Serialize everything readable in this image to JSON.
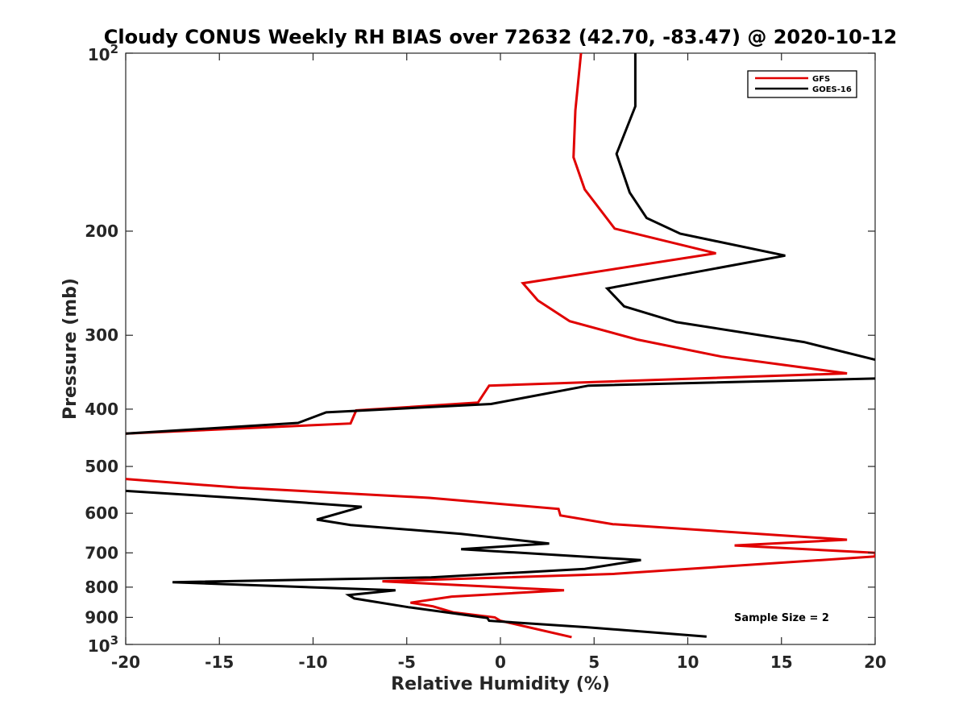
{
  "chart_data": {
    "type": "line",
    "title": "Cloudy CONUS Weekly RH BIAS over 72632 (42.70, -83.47) @ 2020-10-12",
    "xlabel": "Relative Humidity (%)",
    "ylabel": "Pressure (mb)",
    "xlim": [
      -20,
      20
    ],
    "ylim": [
      100,
      1000
    ],
    "yscale": "log",
    "y_reversed": true,
    "grid": false,
    "legend_position": "top-right",
    "annotation": "Sample Size = 2",
    "x_ticks": [
      {
        "value": -20,
        "label": "-20"
      },
      {
        "value": -15,
        "label": "-15"
      },
      {
        "value": -10,
        "label": "-10"
      },
      {
        "value": -5,
        "label": "-5"
      },
      {
        "value": 0,
        "label": "0"
      },
      {
        "value": 5,
        "label": "5"
      },
      {
        "value": 10,
        "label": "10"
      },
      {
        "value": 15,
        "label": "15"
      },
      {
        "value": 20,
        "label": "20"
      }
    ],
    "y_ticks": [
      {
        "value": 100,
        "base": "10",
        "exp": "2"
      },
      {
        "value": 200,
        "label": "200"
      },
      {
        "value": 300,
        "label": "300"
      },
      {
        "value": 400,
        "label": "400"
      },
      {
        "value": 500,
        "label": "500"
      },
      {
        "value": 600,
        "label": "600"
      },
      {
        "value": 700,
        "label": "700"
      },
      {
        "value": 800,
        "label": "800"
      },
      {
        "value": 900,
        "label": "900"
      },
      {
        "value": 1000,
        "base": "10",
        "exp": "3"
      }
    ],
    "series": [
      {
        "name": "GFS",
        "color": "#e00000",
        "points": [
          [
            4.3,
            100
          ],
          [
            4.0,
            125
          ],
          [
            3.9,
            150
          ],
          [
            4.5,
            170
          ],
          [
            6.1,
            198
          ],
          [
            11.5,
            218
          ],
          [
            1.2,
            245
          ],
          [
            2.0,
            262
          ],
          [
            3.7,
            284
          ],
          [
            7.3,
            305
          ],
          [
            11.8,
            326
          ],
          [
            18.5,
            348
          ],
          [
            -0.6,
            365
          ],
          [
            -1.2,
            390
          ],
          [
            -7.7,
            402
          ],
          [
            -8.0,
            423
          ],
          [
            -20,
            440
          ],
          [
            null,
            470
          ],
          [
            -20,
            525
          ],
          [
            -14.0,
            543
          ],
          [
            -3.8,
            565
          ],
          [
            3.1,
            590
          ],
          [
            3.2,
            605
          ],
          [
            6.0,
            626
          ],
          [
            18.5,
            665
          ],
          [
            12.5,
            680
          ],
          [
            20,
            700
          ],
          [
            20,
            710
          ],
          [
            6.0,
            760
          ],
          [
            -6.3,
            782
          ],
          [
            3.4,
            810
          ],
          [
            -2.6,
            830
          ],
          [
            -4.8,
            850
          ],
          [
            -3.6,
            862
          ],
          [
            -2.5,
            883
          ],
          [
            -0.3,
            900
          ],
          [
            0.0,
            912
          ],
          [
            3.8,
            972
          ]
        ]
      },
      {
        "name": "GOES-16",
        "color": "#000000",
        "points": [
          [
            7.2,
            100
          ],
          [
            7.2,
            123
          ],
          [
            6.2,
            148
          ],
          [
            6.9,
            172
          ],
          [
            7.8,
            190
          ],
          [
            9.6,
            202
          ],
          [
            15.2,
            220
          ],
          [
            5.7,
            250
          ],
          [
            6.6,
            268
          ],
          [
            9.4,
            285
          ],
          [
            16.2,
            308
          ],
          [
            20,
            330
          ],
          [
            null,
            345
          ],
          [
            20,
            355
          ],
          [
            4.7,
            365
          ],
          [
            -0.5,
            392
          ],
          [
            -9.3,
            405
          ],
          [
            -10.8,
            422
          ],
          [
            -20,
            440
          ],
          [
            null,
            470
          ],
          [
            -20,
            550
          ],
          [
            -13.4,
            567
          ],
          [
            -7.4,
            585
          ],
          [
            -9.8,
            615
          ],
          [
            -8.0,
            628
          ],
          [
            -2.1,
            650
          ],
          [
            2.6,
            675
          ],
          [
            -2.1,
            690
          ],
          [
            7.5,
            720
          ],
          [
            4.5,
            745
          ],
          [
            -3.7,
            770
          ],
          [
            -17.5,
            785
          ],
          [
            -5.6,
            810
          ],
          [
            -8.1,
            825
          ],
          [
            -7.8,
            836
          ],
          [
            -4.9,
            865
          ],
          [
            -0.7,
            902
          ],
          [
            -0.6,
            912
          ],
          [
            4.6,
            935
          ],
          [
            11.0,
            970
          ]
        ]
      }
    ]
  }
}
